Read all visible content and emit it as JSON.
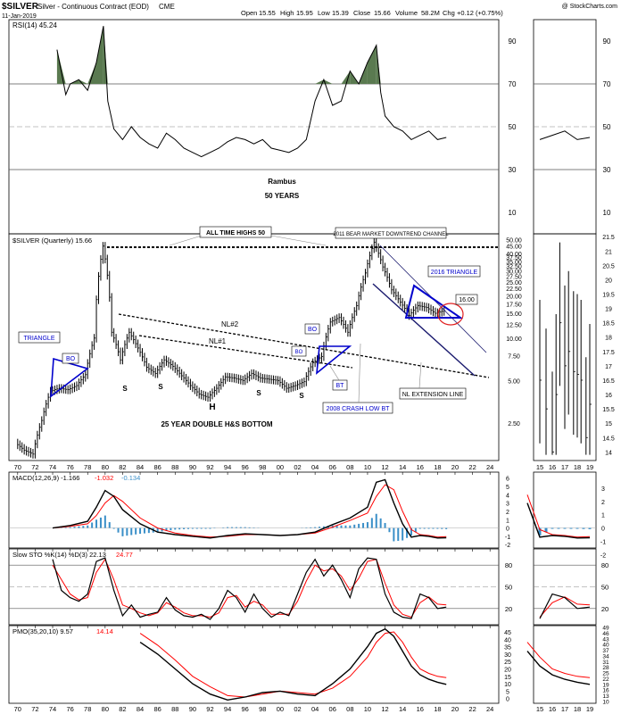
{
  "header": {
    "symbol": "$SILVER",
    "description": "Silver - Continuous Contract (EOD)",
    "exchange": "CME",
    "date": "11-Jan-2019",
    "open_label": "Open",
    "open": "15.55",
    "high_label": "High",
    "high": "15.95",
    "low_label": "Low",
    "low": "15.39",
    "close_label": "Close",
    "close": "15.66",
    "volume_label": "Volume",
    "volume": "58.2M",
    "change_label": "Chg",
    "change": "+0.12 (+0.75%)",
    "credit": "@ StockCharts.com"
  },
  "colors": {
    "price": "#000000",
    "signal": "#ff0000",
    "histogram": "#3a8fc8",
    "rsi_fill": "#5a7a50",
    "annot_blue": "#0000cc"
  },
  "annotations": {
    "rambus": "Rambus",
    "years": "50 YEARS",
    "all_time_highs": "ALL TIME HIGHS 50",
    "bear_channel": "2011 BEAR MARKET DOWNTREND CHANNEL",
    "triangle_2016": "2016 TRIANGLE",
    "level_16": "16.00",
    "nl2": "NL#2",
    "nl1": "NL#1",
    "bo1": "BO",
    "bo2": "BO",
    "bo3": "BO",
    "bt": "BT",
    "triangle": "TRIANGLE",
    "crash_low": "2008 CRASH LOW BT",
    "nl_extension": "NL EXTENSION LINE",
    "hs_bottom": "25 YEAR DOUBLE H&S BOTTOM",
    "s1": "S",
    "s2": "S",
    "s3": "S",
    "s4": "S",
    "h": "H"
  },
  "chart_data": [
    {
      "type": "line",
      "panel": "rsi",
      "legend": "RSI(14) 45.24",
      "y_ticks": [
        10,
        30,
        50,
        70,
        90
      ],
      "ylim": [
        0,
        100
      ],
      "reference_lines": [
        30,
        50,
        70
      ],
      "x": [
        1974.5,
        1975.5,
        1976,
        1977,
        1978,
        1979,
        1979.8,
        1980.3,
        1981,
        1982,
        1983,
        1984,
        1985,
        1986,
        1987,
        1988,
        1989,
        1990,
        1991,
        1992,
        1993,
        1994,
        1995,
        1996,
        1997,
        1998,
        1999,
        2000,
        2001,
        2002,
        2003,
        2004,
        2005,
        2006,
        2007,
        2008,
        2009,
        2010,
        2011,
        2011.5,
        2012,
        2013,
        2014,
        2015,
        2016,
        2017,
        2018,
        2019
      ],
      "values": [
        86,
        65,
        70,
        72,
        67,
        80,
        97,
        62,
        49,
        44,
        50,
        45,
        42,
        40,
        47,
        44,
        40,
        38,
        36,
        38,
        40,
        43,
        45,
        44,
        42,
        44,
        40,
        39,
        38,
        40,
        44,
        62,
        72,
        60,
        62,
        76,
        70,
        80,
        88,
        66,
        55,
        50,
        48,
        44,
        46,
        48,
        44,
        45
      ]
    },
    {
      "type": "line",
      "panel": "price",
      "title": "$SILVER (Quarterly) 15.66",
      "y_scale": "log",
      "y_ticks": [
        2.5,
        5,
        7.5,
        10,
        12.5,
        15,
        17.5,
        20,
        22.5,
        25,
        27.5,
        30,
        32.5,
        35,
        37.5,
        40,
        45,
        50
      ],
      "x_ticks": [
        70,
        72,
        74,
        76,
        78,
        80,
        82,
        84,
        86,
        88,
        90,
        92,
        94,
        96,
        98,
        "00",
        "02",
        "04",
        "06",
        "08",
        10,
        12,
        14,
        16,
        18,
        20,
        22,
        24
      ],
      "x": [
        1970,
        1971,
        1972,
        1973,
        1974,
        1975,
        1976,
        1977,
        1978,
        1979,
        1980,
        1981,
        1982,
        1983,
        1984,
        1985,
        1986,
        1987,
        1988,
        1989,
        1990,
        1991,
        1992,
        1993,
        1994,
        1995,
        1996,
        1997,
        1998,
        1999,
        2000,
        2001,
        2002,
        2003,
        2004,
        2005,
        2006,
        2007,
        2008,
        2009,
        2010,
        2011,
        2012,
        2013,
        2014,
        2015,
        2016,
        2017,
        2018,
        2019
      ],
      "values": [
        1.8,
        1.6,
        1.5,
        2.6,
        4.2,
        4.4,
        4.3,
        4.6,
        5.5,
        10,
        45,
        11,
        7,
        11,
        8.5,
        6.2,
        5.6,
        7,
        6.3,
        5.4,
        4.6,
        4.0,
        3.8,
        4.4,
        5.3,
        5.2,
        5.0,
        5.6,
        5.2,
        5.1,
        5.0,
        4.4,
        4.6,
        4.9,
        6.7,
        7.4,
        13,
        14,
        11,
        17,
        29,
        48,
        32,
        22,
        18,
        14.5,
        17,
        16.5,
        15,
        15.66
      ]
    },
    {
      "type": "line",
      "panel": "macd",
      "legend": [
        "MACD(12,26,9) -1.166",
        "-1.032",
        "-0.134"
      ],
      "y_ticks": [
        -2,
        -1,
        0,
        1,
        2,
        3,
        4,
        5,
        6
      ],
      "ylim": [
        -2.3,
        6.5
      ],
      "x": [
        1974,
        1976,
        1978,
        1979,
        1980,
        1981,
        1982,
        1984,
        1986,
        1988,
        1990,
        1992,
        1994,
        1996,
        1998,
        2000,
        2002,
        2004,
        2006,
        2008,
        2010,
        2011,
        2012,
        2013,
        2014,
        2015,
        2016,
        2017,
        2018,
        2019
      ],
      "series": [
        {
          "name": "MACD(12,26,9)",
          "values": [
            0,
            0.3,
            0.8,
            2.5,
            4.5,
            3.8,
            2.2,
            0.5,
            -0.5,
            -0.8,
            -1.0,
            -1.2,
            -0.9,
            -0.7,
            -0.8,
            -0.9,
            -0.8,
            -0.5,
            0.4,
            1.2,
            2.5,
            5.5,
            5.8,
            3.0,
            0.5,
            -1.1,
            -0.9,
            -1.0,
            -1.2,
            -1.17
          ]
        },
        {
          "name": "Signal",
          "values": [
            0,
            0.2,
            0.5,
            1.5,
            3.0,
            3.9,
            3.2,
            1.2,
            0.0,
            -0.6,
            -0.9,
            -1.1,
            -1.0,
            -0.8,
            -0.8,
            -0.9,
            -0.8,
            -0.6,
            0.1,
            0.9,
            1.8,
            3.8,
            5.2,
            4.6,
            2.0,
            -0.2,
            -0.8,
            -0.9,
            -1.1,
            -1.03
          ]
        }
      ]
    },
    {
      "type": "line",
      "panel": "slow_sto",
      "legend": [
        "Slow STO %K(14) %D(3) 22.13",
        "24.77"
      ],
      "y_ticks": [
        20,
        50,
        80
      ],
      "ylim": [
        0,
        100
      ],
      "reference_lines": [
        20,
        50,
        80
      ],
      "x": [
        1974,
        1975,
        1976,
        1977,
        1978,
        1979,
        1980,
        1981,
        1982,
        1983,
        1984,
        1985,
        1986,
        1987,
        1988,
        1989,
        1990,
        1991,
        1992,
        1993,
        1994,
        1995,
        1996,
        1997,
        1998,
        1999,
        2000,
        2001,
        2002,
        2003,
        2004,
        2005,
        2006,
        2007,
        2008,
        2009,
        2010,
        2011,
        2012,
        2013,
        2014,
        2015,
        2016,
        2017,
        2018,
        2019
      ],
      "series": [
        {
          "name": "%K(14)",
          "values": [
            88,
            45,
            35,
            30,
            40,
            85,
            90,
            45,
            10,
            25,
            8,
            12,
            15,
            35,
            18,
            10,
            8,
            12,
            5,
            20,
            45,
            35,
            15,
            40,
            20,
            8,
            15,
            10,
            40,
            70,
            88,
            65,
            80,
            60,
            35,
            75,
            90,
            88,
            40,
            15,
            8,
            6,
            40,
            35,
            20,
            22
          ]
        },
        {
          "name": "%D(3)",
          "values": [
            80,
            60,
            40,
            32,
            35,
            70,
            88,
            60,
            25,
            20,
            14,
            10,
            14,
            28,
            22,
            14,
            10,
            10,
            8,
            14,
            35,
            38,
            22,
            30,
            25,
            12,
            12,
            12,
            30,
            58,
            80,
            72,
            75,
            65,
            45,
            62,
            85,
            88,
            55,
            25,
            12,
            8,
            28,
            36,
            26,
            25
          ]
        }
      ]
    },
    {
      "type": "line",
      "panel": "pmo",
      "legend": [
        "PMO(35,20,10) 9.57",
        "14.14"
      ],
      "y_ticks": [
        0,
        5,
        10,
        15,
        20,
        25,
        30,
        35,
        40,
        45
      ],
      "ylim": [
        -2,
        48
      ],
      "x": [
        1984,
        1986,
        1988,
        1990,
        1992,
        1994,
        1996,
        1998,
        2000,
        2002,
        2004,
        2006,
        2008,
        2010,
        2011,
        2012,
        2013,
        2014,
        2015,
        2016,
        2017,
        2018,
        2019
      ],
      "series": [
        {
          "name": "PMO(35,20,10)",
          "values": [
            38,
            30,
            20,
            10,
            3,
            -1,
            1,
            4,
            5,
            3,
            2,
            10,
            20,
            35,
            44,
            47,
            42,
            32,
            22,
            16,
            13,
            11,
            9.57
          ]
        },
        {
          "name": "Signal",
          "values": [
            44,
            36,
            26,
            15,
            8,
            2,
            1,
            3,
            5,
            4,
            3,
            7,
            15,
            28,
            38,
            44,
            45,
            38,
            28,
            20,
            17,
            15,
            14.14
          ]
        }
      ]
    },
    {
      "type": "bar",
      "panel": "inset_price",
      "y_ticks": [
        14,
        14.5,
        15,
        15.5,
        16,
        16.5,
        17,
        17.5,
        18,
        18.5,
        19,
        19.5,
        20,
        20.5,
        21,
        21.5
      ],
      "x_ticks": [
        15,
        16,
        17,
        18,
        19
      ],
      "ylim": [
        13.7,
        21.6
      ],
      "x": [
        2015.0,
        2015.5,
        2016.0,
        2016.3,
        2016.6,
        2017.0,
        2017.3,
        2017.7,
        2018.0,
        2018.3,
        2018.7,
        2019.0
      ],
      "values": [
        16.5,
        15.5,
        14.0,
        16.0,
        18.5,
        17.0,
        17.5,
        16.8,
        16.7,
        16.5,
        14.5,
        15.66
      ]
    }
  ]
}
